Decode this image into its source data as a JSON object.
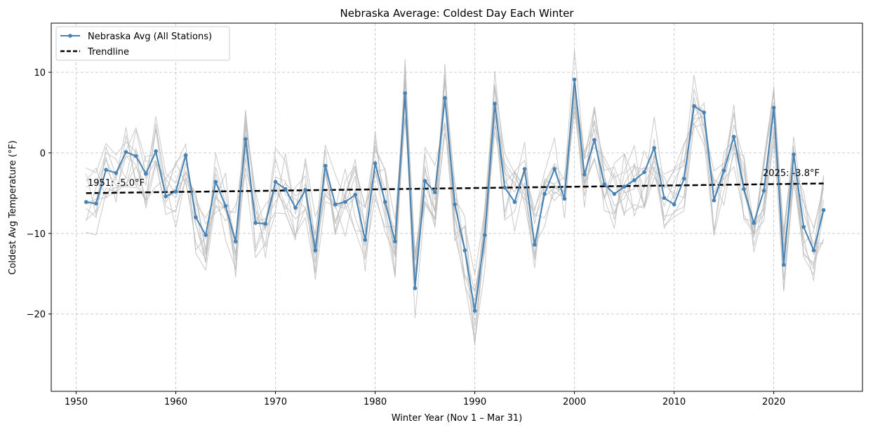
{
  "chart_data": {
    "type": "line",
    "title": "Nebraska Average: Coldest Day Each Winter",
    "xlabel": "Winter Year (Nov 1 – Mar 31)",
    "ylabel": "Coldest Avg Temperature (°F)",
    "xlim": [
      1947.5,
      2028.9
    ],
    "ylim": [
      -29.6,
      16.1
    ],
    "xticks": [
      1950,
      1960,
      1970,
      1980,
      1990,
      2000,
      2010,
      2020
    ],
    "yticks": [
      -20,
      -10,
      0,
      10
    ],
    "ytick_labels": [
      "−20",
      "−10",
      "0",
      "10"
    ],
    "grid": true,
    "legend_placement": "top-left",
    "series": [
      {
        "name": "Nebraska Avg (All Stations)",
        "color": "#4682b4",
        "x_start": 1951,
        "x_end": 2025,
        "values": [
          -6.1,
          -6.3,
          -2.1,
          -2.5,
          0.1,
          -0.4,
          -2.6,
          0.2,
          -5.4,
          -4.8,
          -0.3,
          -8.0,
          -10.2,
          -3.6,
          -6.6,
          -11.0,
          1.7,
          -8.7,
          -8.8,
          -3.6,
          -4.5,
          -6.8,
          -4.6,
          -12.1,
          -1.6,
          -6.4,
          -6.1,
          -5.2,
          -10.8,
          -1.3,
          -6.1,
          -11.0,
          7.4,
          -16.8,
          -3.5,
          -4.9,
          6.8,
          -6.4,
          -12.1,
          -19.6,
          -10.2,
          6.1,
          -4.3,
          -6.1,
          -2.0,
          -11.4,
          -5.1,
          -2.0,
          -5.7,
          9.1,
          -2.7,
          1.6,
          -3.9,
          -5.1,
          -4.2,
          -3.4,
          -2.4,
          0.6,
          -5.6,
          -6.4,
          -3.2,
          5.8,
          5.0,
          -5.9,
          -2.2,
          2.0,
          -4.5,
          -8.7,
          -4.7,
          5.6,
          -13.9,
          -0.2,
          -9.2,
          -12.1,
          -7.1
        ]
      },
      {
        "name": "Trendline",
        "color": "#000000",
        "style": "dashed",
        "x": [
          1951,
          2025
        ],
        "values": [
          -5.0,
          -3.8
        ]
      }
    ],
    "station_lines_color": "#bbbbbb",
    "annotations": [
      {
        "text": "1951: -5.0°F",
        "x": 1951,
        "y": -5.0
      },
      {
        "text": "2025: -3.8°F",
        "x": 2025,
        "y": -3.8
      }
    ]
  }
}
